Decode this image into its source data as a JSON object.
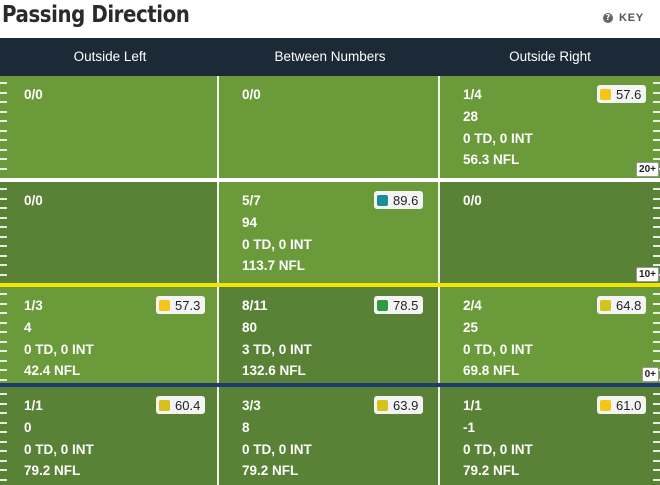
{
  "title": "Passing Direction",
  "key_label": "KEY",
  "columns": [
    "Outside Left",
    "Between Numbers",
    "Outside Right"
  ],
  "colors": {
    "header_bg": "#1b2a36",
    "field_light": "#6b9a3b",
    "field_dark": "#5a8236",
    "yellow_line": "#f3e500",
    "blue_line": "#1f3a6e",
    "grade_yellow": "#f5c518",
    "grade_olive": "#d4c31a",
    "grade_teal": "#1a8f9a",
    "grade_green": "#2e9c3e"
  },
  "rows": [
    {
      "cells": [
        {
          "completions": "0/0",
          "lines": []
        },
        {
          "completions": "0/0",
          "lines": []
        },
        {
          "completions": "1/4",
          "lines": [
            "28",
            "0 TD, 0 INT",
            "56.3 NFL"
          ],
          "grade": "57.6",
          "grade_color": "#f5c518"
        }
      ]
    },
    {
      "cells": [
        {
          "completions": "0/0",
          "lines": []
        },
        {
          "completions": "5/7",
          "lines": [
            "94",
            "0 TD, 0 INT",
            "113.7 NFL"
          ],
          "grade": "89.6",
          "grade_color": "#1a8f9a"
        },
        {
          "completions": "0/0",
          "lines": []
        }
      ]
    },
    {
      "cells": [
        {
          "completions": "1/3",
          "lines": [
            "4",
            "0 TD, 0 INT",
            "42.4 NFL"
          ],
          "grade": "57.3",
          "grade_color": "#f5c518"
        },
        {
          "completions": "8/11",
          "lines": [
            "80",
            "3 TD, 0 INT",
            "132.6 NFL"
          ],
          "grade": "78.5",
          "grade_color": "#2e9c3e"
        },
        {
          "completions": "2/4",
          "lines": [
            "25",
            "0 TD, 0 INT",
            "69.8 NFL"
          ],
          "grade": "64.8",
          "grade_color": "#d4c31a"
        }
      ]
    },
    {
      "cells": [
        {
          "completions": "1/1",
          "lines": [
            "0",
            "0 TD, 0 INT",
            "79.2 NFL"
          ],
          "grade": "60.4",
          "grade_color": "#d4c31a"
        },
        {
          "completions": "3/3",
          "lines": [
            "8",
            "0 TD, 0 INT",
            "79.2 NFL"
          ],
          "grade": "63.9",
          "grade_color": "#d4c31a"
        },
        {
          "completions": "1/1",
          "lines": [
            "-1",
            "0 TD, 0 INT",
            "79.2 NFL"
          ],
          "grade": "61.0",
          "grade_color": "#f5c518"
        }
      ]
    }
  ],
  "yard_labels": [
    "20+",
    "10+",
    "0+"
  ]
}
